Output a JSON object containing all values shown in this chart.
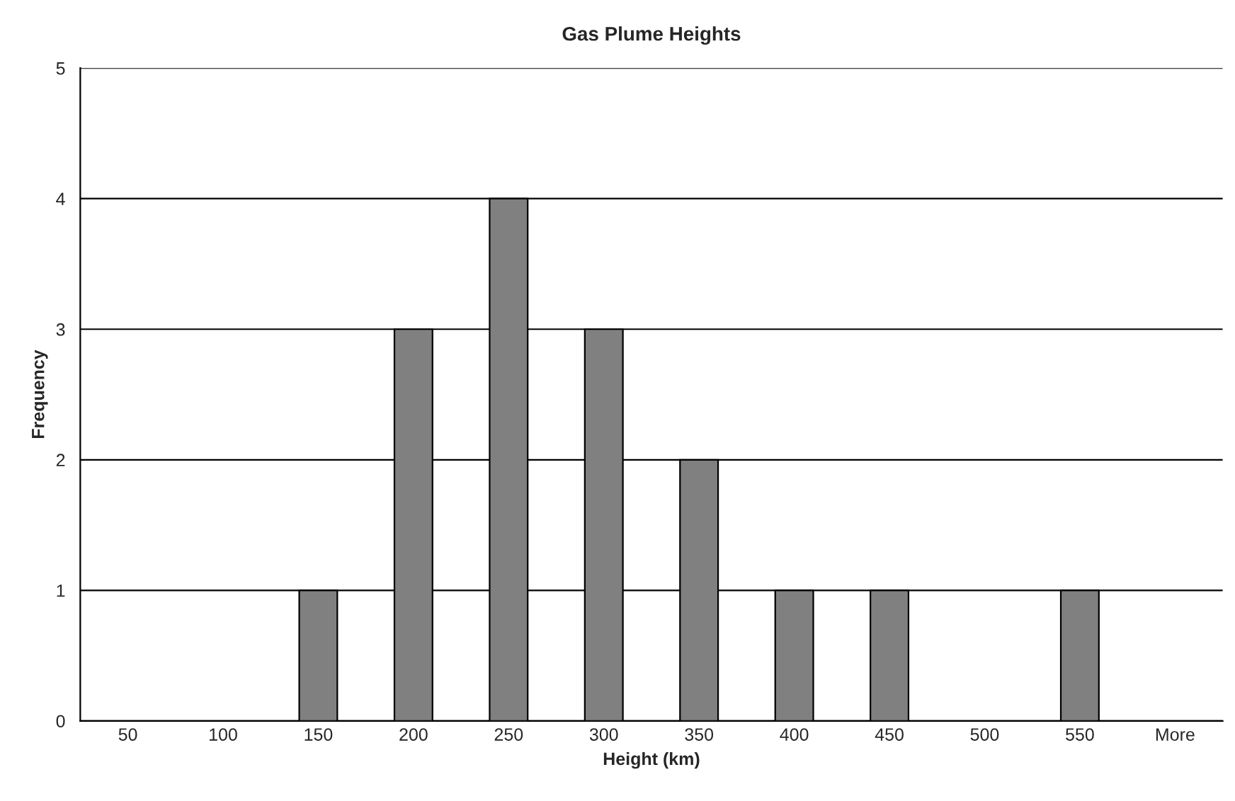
{
  "chart_data": {
    "type": "bar",
    "title": "Gas Plume Heights",
    "xlabel": "Height (km)",
    "ylabel": "Frequency",
    "categories": [
      "50",
      "100",
      "150",
      "200",
      "250",
      "300",
      "350",
      "400",
      "450",
      "500",
      "550",
      "More"
    ],
    "values": [
      0,
      0,
      1,
      3,
      4,
      3,
      2,
      1,
      1,
      0,
      1,
      0
    ],
    "color": "#808080",
    "ylim": [
      0,
      5
    ],
    "yticks": [
      0,
      1,
      2,
      3,
      4,
      5
    ],
    "grid": "y"
  }
}
